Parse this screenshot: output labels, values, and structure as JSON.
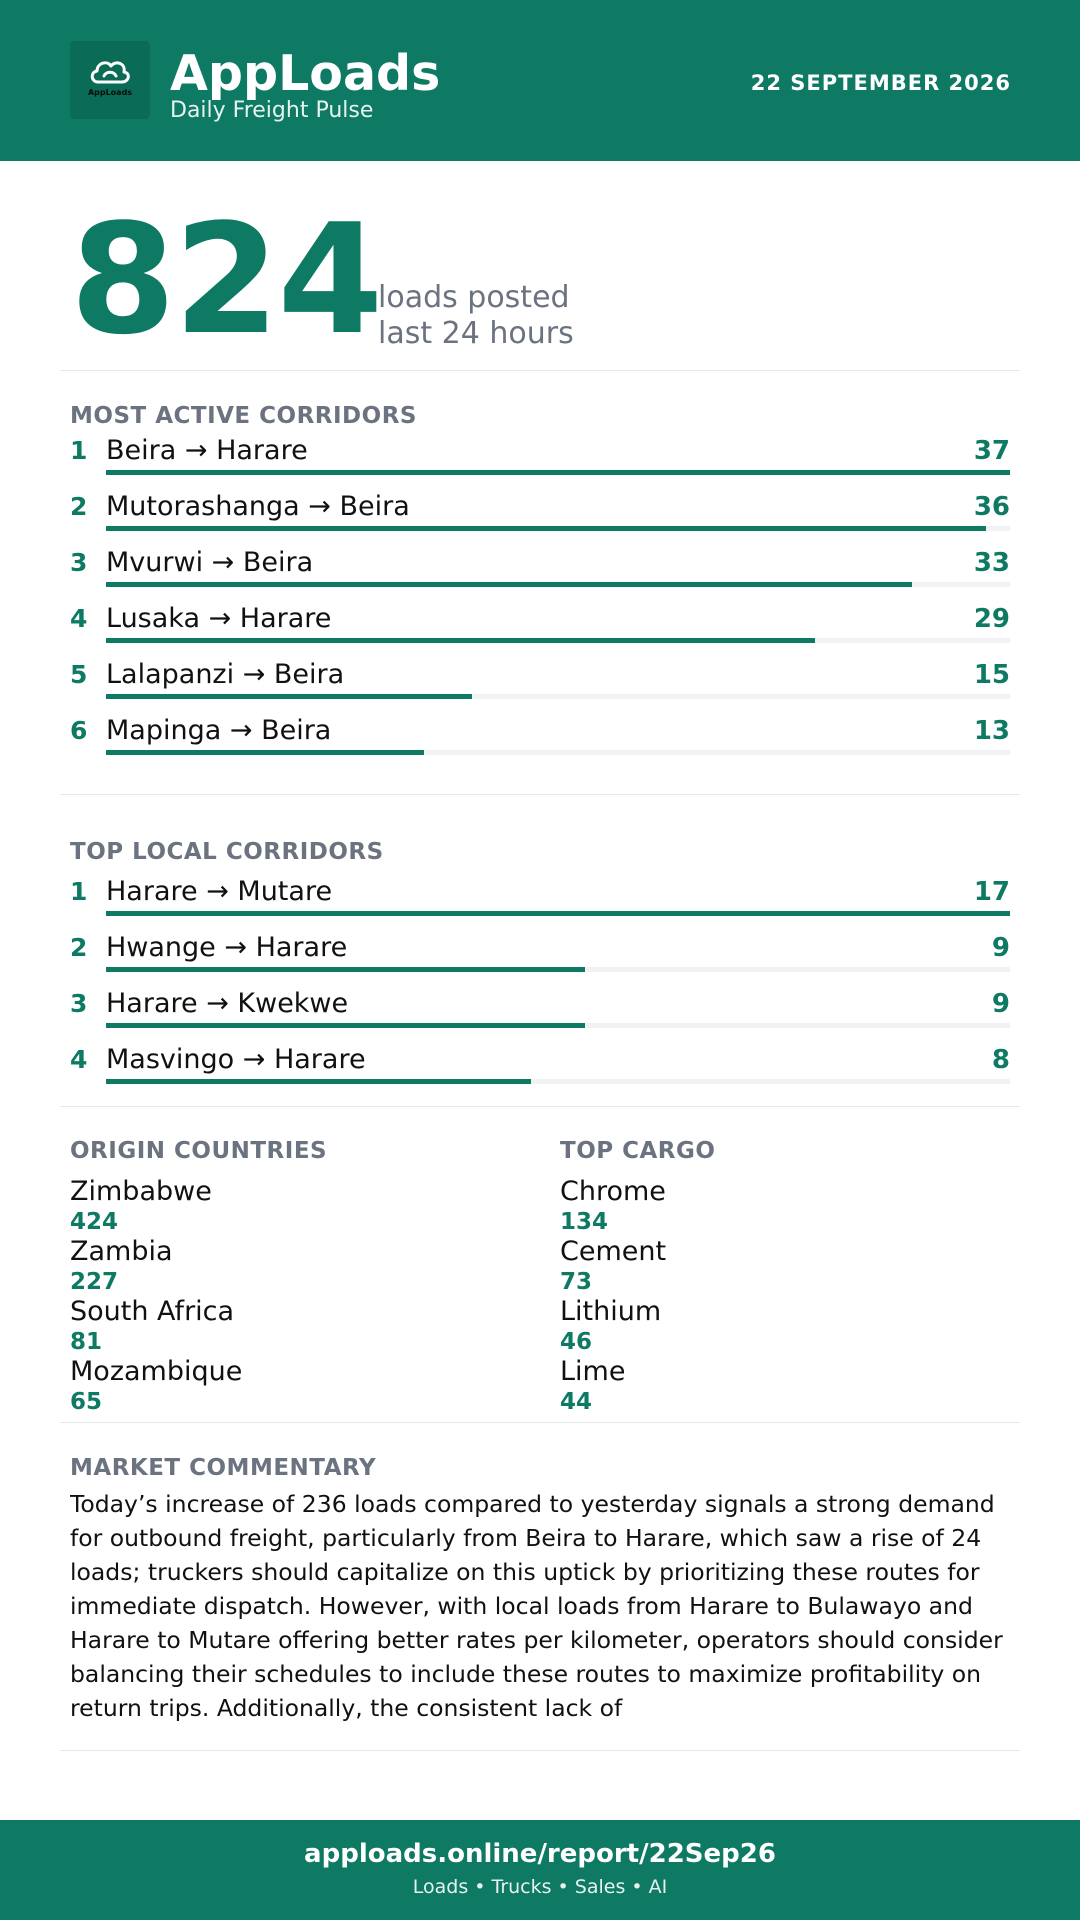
{
  "header": {
    "brand_name": "AppLoads",
    "tagline": "Daily Freight Pulse",
    "logo_text": "AppLoads",
    "date": "22 SEPTEMBER 2026"
  },
  "hero": {
    "value": "824",
    "caption_line1": "loads posted",
    "caption_line2": "last 24 hours"
  },
  "active_corridors": {
    "title": "MOST ACTIVE CORRIDORS",
    "max": 37,
    "items": [
      {
        "rank": "1",
        "route": "Beira → Harare",
        "count": 37
      },
      {
        "rank": "2",
        "route": "Mutorashanga → Beira",
        "count": 36
      },
      {
        "rank": "3",
        "route": "Mvurwi → Beira",
        "count": 33
      },
      {
        "rank": "4",
        "route": "Lusaka → Harare",
        "count": 29
      },
      {
        "rank": "5",
        "route": "Lalapanzi → Beira",
        "count": 15
      },
      {
        "rank": "6",
        "route": "Mapinga → Beira",
        "count": 13
      }
    ]
  },
  "local_corridors": {
    "title": "TOP LOCAL CORRIDORS",
    "max": 17,
    "items": [
      {
        "rank": "1",
        "route": "Harare → Mutare",
        "count": 17
      },
      {
        "rank": "2",
        "route": "Hwange → Harare",
        "count": 9
      },
      {
        "rank": "3",
        "route": "Harare → Kwekwe",
        "count": 9
      },
      {
        "rank": "4",
        "route": "Masvingo → Harare",
        "count": 8
      }
    ]
  },
  "origin_countries": {
    "title": "ORIGIN COUNTRIES",
    "items": [
      {
        "name": "Zimbabwe",
        "value": "424"
      },
      {
        "name": "Zambia",
        "value": "227"
      },
      {
        "name": "South Africa",
        "value": "81"
      },
      {
        "name": "Mozambique",
        "value": "65"
      }
    ]
  },
  "top_cargo": {
    "title": "TOP CARGO",
    "items": [
      {
        "name": "Chrome",
        "value": "134"
      },
      {
        "name": "Cement",
        "value": "73"
      },
      {
        "name": "Lithium",
        "value": "46"
      },
      {
        "name": "Lime",
        "value": "44"
      }
    ]
  },
  "commentary": {
    "title": "MARKET COMMENTARY",
    "text": "Today’s increase of 236 loads compared to yesterday signals a strong demand for outbound freight, particularly from Beira to Harare, which saw a rise of 24 loads; truckers should capitalize on this uptick by prioritizing these routes for immediate dispatch. However, with local loads from Harare to Bulawayo and Harare to Mutare offering better rates per kilometer, operators should consider balancing their schedules to include these routes to maximize profitability on return trips. Additionally, the consistent lack of"
  },
  "footer": {
    "url": "apploads.online/report/22Sep26",
    "tagline": "Loads • Trucks • Sales • AI"
  },
  "colors": {
    "brand": "#0e7a64",
    "muted": "#6b7280",
    "track": "#f1f2f2"
  }
}
